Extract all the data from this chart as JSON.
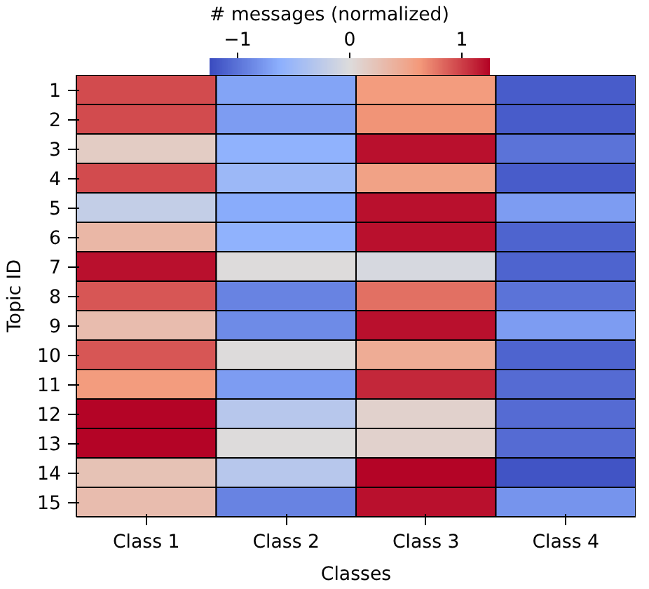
{
  "chart_data": {
    "type": "heatmap",
    "xlabel": "Classes",
    "ylabel": "Topic ID",
    "clabel": "# messages (normalized)",
    "categories": [
      "Class 1",
      "Class 2",
      "Class 3",
      "Class 4"
    ],
    "y_categories": [
      "1",
      "2",
      "3",
      "4",
      "5",
      "6",
      "7",
      "8",
      "9",
      "10",
      "11",
      "12",
      "13",
      "14",
      "15"
    ],
    "cells": [
      [
        0.95,
        -0.7,
        0.6,
        -1.15
      ],
      [
        0.95,
        -0.75,
        0.65,
        -1.15
      ],
      [
        0.15,
        -0.6,
        1.2,
        -1.0
      ],
      [
        0.95,
        -0.5,
        0.55,
        -1.15
      ],
      [
        -0.2,
        -0.65,
        1.2,
        -0.75
      ],
      [
        0.35,
        -0.6,
        1.2,
        -1.1
      ],
      [
        1.2,
        0.0,
        -0.05,
        -1.1
      ],
      [
        0.9,
        -0.9,
        0.8,
        -1.0
      ],
      [
        0.3,
        -0.85,
        1.2,
        -0.75
      ],
      [
        0.9,
        0.0,
        0.45,
        -1.1
      ],
      [
        0.6,
        -0.75,
        1.1,
        -1.05
      ],
      [
        1.25,
        -0.3,
        0.1,
        -1.05
      ],
      [
        1.25,
        0.0,
        0.1,
        -1.05
      ],
      [
        0.25,
        -0.3,
        1.25,
        -1.2
      ],
      [
        0.3,
        -0.9,
        1.2,
        -0.8
      ]
    ],
    "clim": [
      -1.25,
      1.25
    ],
    "cticks": [
      {
        "value": -1,
        "label": "−1"
      },
      0,
      1
    ]
  }
}
